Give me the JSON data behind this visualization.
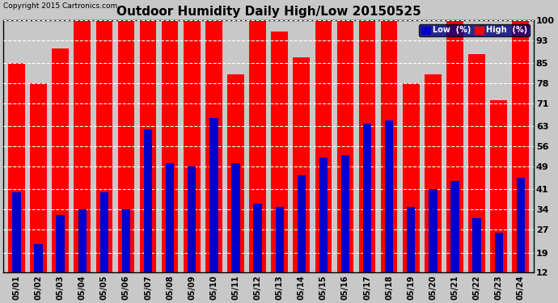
{
  "title": "Outdoor Humidity Daily High/Low 20150525",
  "copyright": "Copyright 2015 Cartronics.com",
  "dates": [
    "05/01",
    "05/02",
    "05/03",
    "05/04",
    "05/05",
    "05/06",
    "05/07",
    "05/08",
    "05/09",
    "05/10",
    "05/11",
    "05/12",
    "05/13",
    "05/14",
    "05/15",
    "05/16",
    "05/17",
    "05/18",
    "05/19",
    "05/20",
    "05/21",
    "05/22",
    "05/23",
    "05/24"
  ],
  "high": [
    85,
    78,
    90,
    100,
    100,
    100,
    100,
    100,
    100,
    100,
    81,
    100,
    96,
    87,
    100,
    100,
    100,
    100,
    78,
    81,
    100,
    88,
    72,
    100
  ],
  "low": [
    40,
    22,
    32,
    34,
    40,
    34,
    62,
    50,
    49,
    66,
    50,
    36,
    35,
    46,
    52,
    53,
    64,
    65,
    35,
    41,
    44,
    31,
    26,
    45
  ],
  "high_color": "#ff0000",
  "low_color": "#0000cc",
  "bg_color": "#c8c8c8",
  "plot_bg_color": "#c8c8c8",
  "grid_color": "#ffffff",
  "yticks": [
    12,
    19,
    27,
    34,
    41,
    49,
    56,
    63,
    71,
    78,
    85,
    93,
    100
  ],
  "ymin": 12,
  "ymax": 100,
  "title_fontsize": 11,
  "legend_low_label": "Low  (%)",
  "legend_high_label": "High  (%)"
}
